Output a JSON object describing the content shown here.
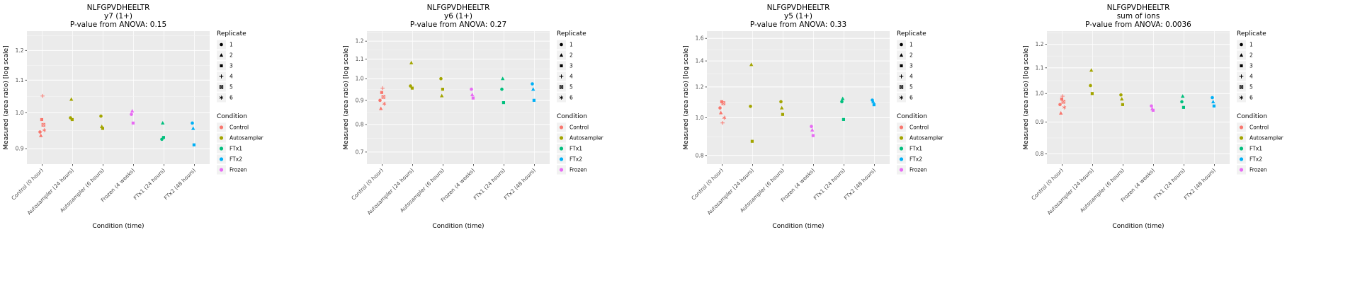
{
  "figure": {
    "peptide": "NLFGPVDHEELTR",
    "x_axis_title": "Condition (time)",
    "y_axis_title": "Measured (area ratio) [log scale]",
    "categories": [
      "Control (0 hour)",
      "Autosampler (24 hours)",
      "Autosampler (6 hours)",
      "Frozen (4 weeks)",
      "FTx1 (24 hours)",
      "FTx2 (48 hours)"
    ],
    "category_condition": [
      "Control",
      "Autosampler",
      "Autosampler",
      "Frozen",
      "FTx1",
      "FTx2"
    ]
  },
  "replicate_legend": {
    "title": "Replicate",
    "items": [
      {
        "label": "1",
        "shape": "circle"
      },
      {
        "label": "2",
        "shape": "triangle"
      },
      {
        "label": "3",
        "shape": "square"
      },
      {
        "label": "4",
        "shape": "plus"
      },
      {
        "label": "5",
        "shape": "square-x"
      },
      {
        "label": "6",
        "shape": "asterisk"
      }
    ]
  },
  "condition_legend": {
    "title": "Condition",
    "items": [
      {
        "label": "Control",
        "color": "#F8766D"
      },
      {
        "label": "Autosampler",
        "color": "#A3A500"
      },
      {
        "label": "FTx1",
        "color": "#00BF7D"
      },
      {
        "label": "FTx2",
        "color": "#00B0F6"
      },
      {
        "label": "Frozen",
        "color": "#E76BF3"
      }
    ]
  },
  "plot_style": {
    "panel_background": "#EBEBEB",
    "grid_major": "#FFFFFF",
    "grid_minor": "#F6F6F6",
    "tick_label_color": "#4D4D4D",
    "tick_mark_color": "#333333",
    "text_color": "#000000"
  },
  "chart_data": [
    {
      "type": "scatter",
      "title": "NLFGPVDHEELTR",
      "subtitle": "y7 (1+)",
      "stat_line": "P-value from ANOVA: 0.15",
      "xlabel": "Condition (time)",
      "ylabel": "Measured (area ratio) [log scale]",
      "y_scale": "log",
      "yticks": [
        0.9,
        1.0,
        1.1,
        1.2
      ],
      "ytick_labels": [
        "0.9",
        "1.0",
        "1.1",
        "1.2"
      ],
      "ylim": [
        0.86,
        1.27
      ],
      "point_format": "[category_index, replicate, value]",
      "points": [
        [
          0,
          4,
          1.05
        ],
        [
          0,
          3,
          0.98
        ],
        [
          0,
          5,
          0.965
        ],
        [
          0,
          6,
          0.95
        ],
        [
          0,
          1,
          0.945
        ],
        [
          0,
          2,
          0.935
        ],
        [
          1,
          2,
          1.04
        ],
        [
          1,
          1,
          0.985
        ],
        [
          1,
          3,
          0.98
        ],
        [
          2,
          1,
          0.99
        ],
        [
          2,
          2,
          0.96
        ],
        [
          2,
          3,
          0.955
        ],
        [
          3,
          2,
          1.005
        ],
        [
          3,
          1,
          0.995
        ],
        [
          3,
          3,
          0.97
        ],
        [
          4,
          2,
          0.97
        ],
        [
          4,
          3,
          0.93
        ],
        [
          4,
          1,
          0.925
        ],
        [
          5,
          1,
          0.97
        ],
        [
          5,
          2,
          0.955
        ],
        [
          5,
          3,
          0.91
        ]
      ]
    },
    {
      "type": "scatter",
      "title": "NLFGPVDHEELTR",
      "subtitle": "y6 (1+)",
      "stat_line": "P-value from ANOVA: 0.27",
      "xlabel": "Condition (time)",
      "ylabel": "Measured (area ratio) [log scale]",
      "y_scale": "log",
      "yticks": [
        0.7,
        0.8,
        0.9,
        1.0,
        1.1,
        1.2
      ],
      "ytick_labels": [
        "0.7",
        "0.8",
        "0.9",
        "1.0",
        "1.1",
        "1.2"
      ],
      "ylim": [
        0.66,
        1.26
      ],
      "point_format": "[category_index, replicate, value]",
      "points": [
        [
          0,
          4,
          0.955
        ],
        [
          0,
          3,
          0.935
        ],
        [
          0,
          5,
          0.915
        ],
        [
          0,
          1,
          0.9
        ],
        [
          0,
          6,
          0.885
        ],
        [
          0,
          2,
          0.865
        ],
        [
          1,
          2,
          1.08
        ],
        [
          1,
          1,
          0.965
        ],
        [
          1,
          3,
          0.955
        ],
        [
          2,
          1,
          1.0
        ],
        [
          2,
          3,
          0.95
        ],
        [
          2,
          2,
          0.92
        ],
        [
          3,
          1,
          0.95
        ],
        [
          3,
          2,
          0.925
        ],
        [
          3,
          3,
          0.91
        ],
        [
          4,
          2,
          1.0
        ],
        [
          4,
          1,
          0.95
        ],
        [
          4,
          3,
          0.89
        ],
        [
          5,
          1,
          0.975
        ],
        [
          5,
          2,
          0.95
        ],
        [
          5,
          3,
          0.9
        ]
      ]
    },
    {
      "type": "scatter",
      "title": "NLFGPVDHEELTR",
      "subtitle": "y5 (1+)",
      "stat_line": "P-value from ANOVA: 0.33",
      "xlabel": "Condition (time)",
      "ylabel": "Measured (area ratio) [log scale]",
      "y_scale": "log",
      "yticks": [
        0.8,
        1.0,
        1.2,
        1.4,
        1.6
      ],
      "ytick_labels": [
        "0.8",
        "1.0",
        "1.2",
        "1.4",
        "1.6"
      ],
      "ylim": [
        0.76,
        1.67
      ],
      "point_format": "[category_index, replicate, value]",
      "points": [
        [
          0,
          3,
          1.1
        ],
        [
          0,
          5,
          1.09
        ],
        [
          0,
          1,
          1.06
        ],
        [
          0,
          2,
          1.03
        ],
        [
          0,
          6,
          1.0
        ],
        [
          0,
          4,
          0.97
        ],
        [
          1,
          2,
          1.37
        ],
        [
          1,
          1,
          1.07
        ],
        [
          1,
          3,
          0.87
        ],
        [
          2,
          1,
          1.1
        ],
        [
          2,
          2,
          1.06
        ],
        [
          2,
          3,
          1.02
        ],
        [
          3,
          1,
          0.95
        ],
        [
          3,
          2,
          0.93
        ],
        [
          3,
          3,
          0.9
        ],
        [
          4,
          2,
          1.12
        ],
        [
          4,
          1,
          1.1
        ],
        [
          4,
          3,
          0.99
        ],
        [
          5,
          1,
          1.11
        ],
        [
          5,
          2,
          1.1
        ],
        [
          5,
          3,
          1.08
        ]
      ]
    },
    {
      "type": "scatter",
      "title": "NLFGPVDHEELTR",
      "subtitle": "sum of ions",
      "stat_line": "P-value from ANOVA: 0.0036",
      "xlabel": "Condition (time)",
      "ylabel": "Measured (area ratio) [log scale]",
      "y_scale": "log",
      "yticks": [
        0.8,
        0.9,
        1.0,
        1.1,
        1.2
      ],
      "ytick_labels": [
        "0.8",
        "0.9",
        "1.0",
        "1.1",
        "1.2"
      ],
      "ylim": [
        0.77,
        1.26
      ],
      "point_format": "[category_index, replicate, value]",
      "points": [
        [
          0,
          4,
          0.99
        ],
        [
          0,
          3,
          0.98
        ],
        [
          0,
          5,
          0.97
        ],
        [
          0,
          1,
          0.96
        ],
        [
          0,
          6,
          0.95
        ],
        [
          0,
          2,
          0.93
        ],
        [
          1,
          2,
          1.09
        ],
        [
          1,
          1,
          1.03
        ],
        [
          1,
          3,
          1.0
        ],
        [
          2,
          1,
          0.995
        ],
        [
          2,
          2,
          0.98
        ],
        [
          2,
          3,
          0.96
        ],
        [
          3,
          1,
          0.955
        ],
        [
          3,
          2,
          0.945
        ],
        [
          3,
          3,
          0.94
        ],
        [
          4,
          2,
          0.99
        ],
        [
          4,
          1,
          0.97
        ],
        [
          4,
          3,
          0.95
        ],
        [
          5,
          1,
          0.985
        ],
        [
          5,
          2,
          0.97
        ],
        [
          5,
          3,
          0.955
        ]
      ]
    }
  ]
}
